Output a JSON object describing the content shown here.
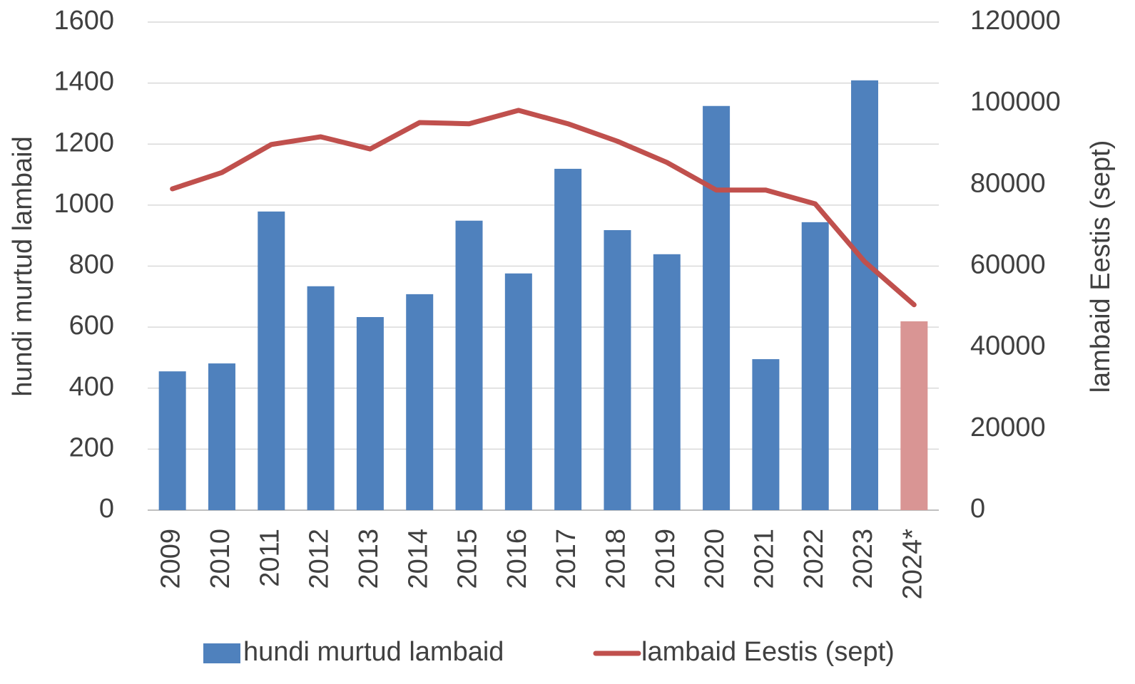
{
  "chart_data": {
    "type": "bar-line",
    "categories": [
      "2009",
      "2010",
      "2011",
      "2012",
      "2013",
      "2014",
      "2015",
      "2016",
      "2017",
      "2018",
      "2019",
      "2020",
      "2021",
      "2022",
      "2023",
      "2024*"
    ],
    "ylabel": "hundi murtud lambaid",
    "y2label": "lambaid Eestis (sept)",
    "ylim": [
      0,
      1600
    ],
    "yticks": [
      0,
      200,
      400,
      600,
      800,
      1000,
      1200,
      1400,
      1600
    ],
    "y2lim": [
      0,
      120000
    ],
    "y2ticks": [
      0,
      20000,
      40000,
      60000,
      80000,
      100000,
      120000
    ],
    "grid": true,
    "legend": "bottom",
    "series": [
      {
        "name": "hundi murtud lambaid",
        "type": "bar",
        "color": "#4f81bd",
        "colors": [
          "#4f81bd",
          "#4f81bd",
          "#4f81bd",
          "#4f81bd",
          "#4f81bd",
          "#4f81bd",
          "#4f81bd",
          "#4f81bd",
          "#4f81bd",
          "#4f81bd",
          "#4f81bd",
          "#4f81bd",
          "#4f81bd",
          "#4f81bd",
          "#4f81bd",
          "#d99594"
        ],
        "values": [
          455,
          481,
          979,
          734,
          633,
          708,
          949,
          776,
          1119,
          918,
          839,
          1325,
          495,
          944,
          1409,
          619
        ]
      },
      {
        "name": "lambaid Eestis (sept)",
        "type": "line",
        "color": "#c0504d",
        "axis": "y2",
        "values": [
          79000,
          83000,
          89900,
          91800,
          88800,
          95300,
          95000,
          98300,
          95000,
          90700,
          85500,
          78700,
          78700,
          75300,
          61100,
          50500
        ]
      }
    ]
  }
}
